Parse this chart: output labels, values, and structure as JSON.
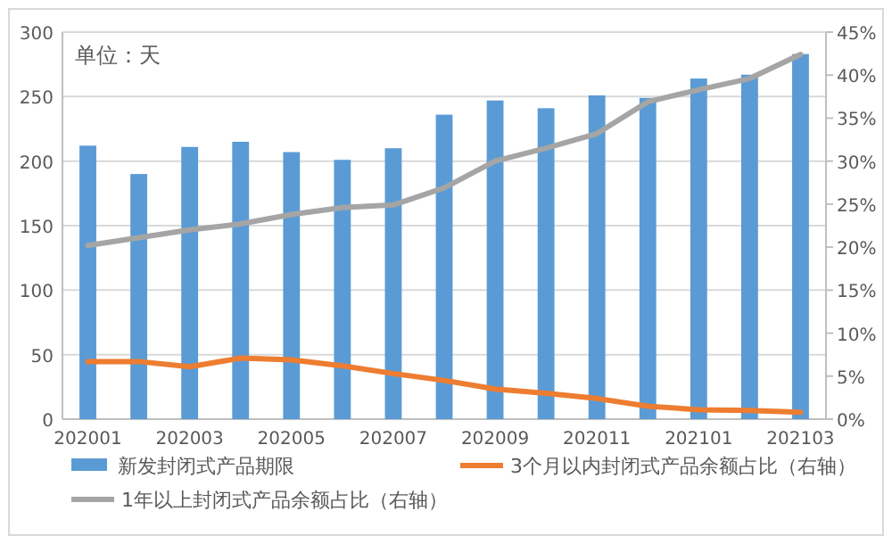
{
  "chart_data": {
    "type": "bar",
    "categories": [
      "202001",
      null,
      "202003",
      null,
      "202005",
      null,
      "202007",
      null,
      "202009",
      null,
      "202011",
      null,
      "202101",
      null,
      "202103"
    ],
    "series": [
      {
        "name": "新发封闭式产品期限",
        "color": "#5b9bd5",
        "values": [
          212,
          190,
          211,
          215,
          207,
          201,
          210,
          236,
          247,
          241,
          251,
          249,
          264,
          267,
          283
        ]
      },
      {
        "name": "3个月以内封闭式产品余额占比（右轴）",
        "type": "line",
        "axis": "y2",
        "color": "#ed7d31",
        "values": [
          6.7,
          6.7,
          6.1,
          7.1,
          6.9,
          6.2,
          5.3,
          4.5,
          3.5,
          3.0,
          2.4,
          1.5,
          1.1,
          1.0,
          0.8
        ]
      },
      {
        "name": "1年以上封闭式产品余额占比（右轴）",
        "type": "line",
        "axis": "y2",
        "color": "#a5a5a5",
        "values": [
          20.2,
          21.1,
          22.0,
          22.7,
          23.8,
          24.6,
          24.9,
          26.9,
          30.0,
          31.5,
          33.2,
          36.9,
          38.3,
          39.6,
          42.4
        ]
      }
    ],
    "ylim": [
      0,
      300
    ],
    "yticks": [
      0,
      50,
      100,
      150,
      200,
      250,
      300
    ],
    "y2lim": [
      0,
      45
    ],
    "y2ticks": [
      {
        "value": 0,
        "label": "0%"
      },
      {
        "value": 5,
        "label": "5%"
      },
      {
        "value": 10,
        "label": "10%"
      },
      {
        "value": 15,
        "label": "15%"
      },
      {
        "value": 20,
        "label": "20%"
      },
      {
        "value": 25,
        "label": "25%"
      },
      {
        "value": 30,
        "label": "30%"
      },
      {
        "value": 35,
        "label": "35%"
      },
      {
        "value": 40,
        "label": "40%"
      },
      {
        "value": 45,
        "label": "45%"
      }
    ],
    "annotations": [
      "单位：天"
    ],
    "grid": "y",
    "legend": "bottom",
    "marker": "none",
    "line_style": "solid"
  }
}
